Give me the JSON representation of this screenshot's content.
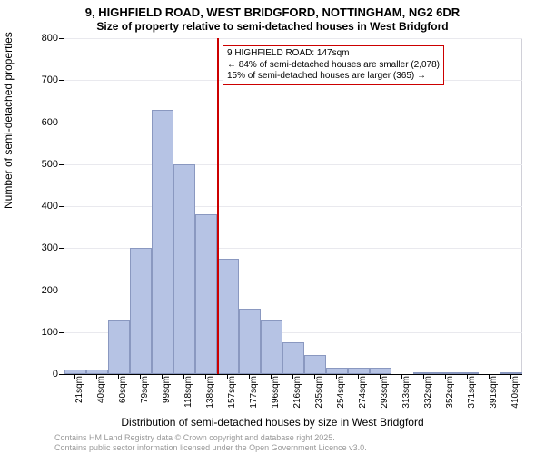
{
  "title_line1": "9, HIGHFIELD ROAD, WEST BRIDGFORD, NOTTINGHAM, NG2 6DR",
  "title_line2": "Size of property relative to semi-detached houses in West Bridgford",
  "chart": {
    "type": "histogram",
    "ylabel": "Number of semi-detached properties",
    "xlabel": "Distribution of semi-detached houses by size in West Bridgford",
    "ylim": [
      0,
      800
    ],
    "ytick_step": 100,
    "bar_fill": "#b6c3e4",
    "bar_border": "#8a98c0",
    "background_color": "#ffffff",
    "grid_color": "#e9e9ee",
    "axis_color": "#000000",
    "label_fontsize": 12,
    "tick_fontsize": 10,
    "bars": [
      {
        "label": "21sqm",
        "value": 10
      },
      {
        "label": "40sqm",
        "value": 10
      },
      {
        "label": "60sqm",
        "value": 130
      },
      {
        "label": "79sqm",
        "value": 300
      },
      {
        "label": "99sqm",
        "value": 630
      },
      {
        "label": "118sqm",
        "value": 500
      },
      {
        "label": "138sqm",
        "value": 380
      },
      {
        "label": "157sqm",
        "value": 275
      },
      {
        "label": "177sqm",
        "value": 155
      },
      {
        "label": "196sqm",
        "value": 130
      },
      {
        "label": "216sqm",
        "value": 75
      },
      {
        "label": "235sqm",
        "value": 45
      },
      {
        "label": "254sqm",
        "value": 15
      },
      {
        "label": "274sqm",
        "value": 15
      },
      {
        "label": "293sqm",
        "value": 15
      },
      {
        "label": "313sqm",
        "value": 0
      },
      {
        "label": "332sqm",
        "value": 3
      },
      {
        "label": "352sqm",
        "value": 2
      },
      {
        "label": "371sqm",
        "value": 2
      },
      {
        "label": "391sqm",
        "value": 0
      },
      {
        "label": "410sqm",
        "value": 2
      }
    ],
    "reference": {
      "bar_index": 7,
      "color": "#cc0000",
      "box_lines": [
        "9 HIGHFIELD ROAD: 147sqm",
        "← 84% of semi-detached houses are smaller (2,078)",
        "15% of semi-detached houses are larger (365) →"
      ]
    }
  },
  "footer": {
    "line1": "Contains HM Land Registry data © Crown copyright and database right 2025.",
    "line2": "Contains public sector information licensed under the Open Government Licence v3.0."
  }
}
